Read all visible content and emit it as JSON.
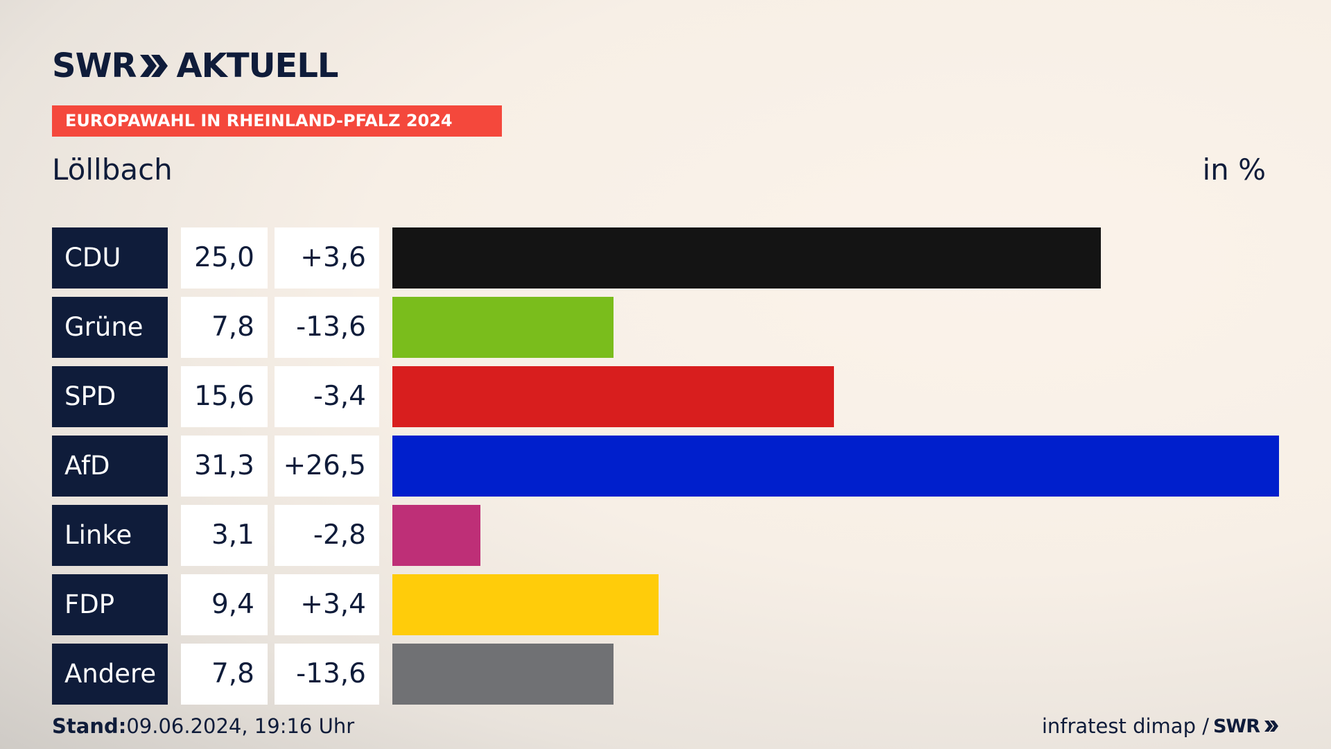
{
  "header": {
    "logo_left": "SWR",
    "logo_right": "AKTUELL",
    "banner": "EUROPAWAHL IN RHEINLAND-PFALZ 2024",
    "location": "Löllbach",
    "unit": "in %"
  },
  "chart_data": {
    "type": "bar",
    "orientation": "horizontal",
    "title": "EUROPAWAHL IN RHEINLAND-PFALZ 2024",
    "subtitle": "Löllbach",
    "unit": "in %",
    "xlim": [
      0,
      31.3
    ],
    "categories": [
      "CDU",
      "Grüne",
      "SPD",
      "AfD",
      "Linke",
      "FDP",
      "Andere"
    ],
    "values": [
      25.0,
      7.8,
      15.6,
      31.3,
      3.1,
      9.4,
      7.8
    ],
    "value_labels": [
      "25,0",
      "7,8",
      "15,6",
      "31,3",
      "3,1",
      "9,4",
      "7,8"
    ],
    "diff_labels": [
      "+3,6",
      "-13,6",
      "-3,4",
      "+26,5",
      "-2,8",
      "+3,4",
      "-13,6"
    ],
    "colors": [
      "#141414",
      "#7abd1c",
      "#d81e1e",
      "#001fcc",
      "#be2f77",
      "#ffcc0a",
      "#707174"
    ]
  },
  "footer": {
    "stand_label": "Stand:",
    "stand_value": "09.06.2024, 19:16 Uhr",
    "source": "infratest dimap /",
    "source_logo": "SWR"
  }
}
